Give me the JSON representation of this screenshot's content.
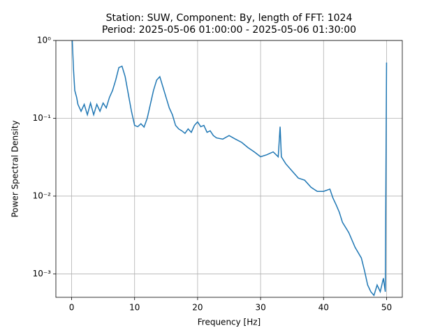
{
  "chart_data": {
    "type": "line",
    "title": "Station: SUW, Component: By, length of FFT: 1024",
    "subtitle": "Period: 2025-05-06 01:00:00 - 2025-05-06 01:30:00",
    "x_label": "Frequency [Hz]",
    "y_label": "Power Spectral Density",
    "x": [
      0.1,
      0.3,
      0.5,
      0.8,
      1.0,
      1.5,
      2.0,
      2.5,
      3.0,
      3.5,
      4.0,
      4.5,
      5.0,
      5.5,
      6.0,
      6.5,
      7.0,
      7.5,
      8.0,
      8.5,
      9.0,
      9.5,
      10.0,
      10.5,
      11.0,
      11.5,
      12.0,
      12.5,
      13.0,
      13.5,
      14.0,
      14.5,
      15.0,
      15.5,
      16.0,
      16.5,
      17.0,
      17.5,
      18.0,
      18.5,
      19.0,
      19.5,
      20.0,
      20.5,
      21.0,
      21.5,
      22.0,
      22.5,
      23.0,
      24.0,
      25.0,
      26.0,
      27.0,
      28.0,
      29.0,
      30.0,
      31.0,
      32.0,
      32.8,
      33.1,
      33.3,
      34.0,
      35.0,
      36.0,
      37.0,
      38.0,
      39.0,
      40.0,
      41.0,
      41.5,
      42.0,
      42.5,
      43.0,
      44.0,
      45.0,
      46.0,
      46.5,
      47.0,
      47.5,
      48.0,
      48.5,
      49.0,
      49.5,
      49.8,
      50.0
    ],
    "series": [
      {
        "name": "By",
        "color": "#1f77b4",
        "values": [
          1.0,
          0.422,
          0.228,
          0.185,
          0.151,
          0.123,
          0.151,
          0.111,
          0.157,
          0.111,
          0.151,
          0.123,
          0.157,
          0.136,
          0.185,
          0.228,
          0.31,
          0.449,
          0.467,
          0.343,
          0.205,
          0.123,
          0.081,
          0.078,
          0.085,
          0.077,
          0.1,
          0.151,
          0.228,
          0.31,
          0.343,
          0.252,
          0.185,
          0.136,
          0.111,
          0.081,
          0.073,
          0.069,
          0.064,
          0.073,
          0.066,
          0.081,
          0.09,
          0.078,
          0.081,
          0.066,
          0.069,
          0.06,
          0.056,
          0.054,
          0.06,
          0.054,
          0.049,
          0.042,
          0.037,
          0.032,
          0.034,
          0.037,
          0.032,
          0.078,
          0.032,
          0.026,
          0.021,
          0.017,
          0.016,
          0.013,
          0.0115,
          0.0115,
          0.0123,
          0.0094,
          0.0077,
          0.0062,
          0.0046,
          0.0034,
          0.0022,
          0.0016,
          0.0011,
          0.00072,
          0.00059,
          0.00053,
          0.00072,
          0.00059,
          0.00088,
          0.00059,
          0.52
        ]
      }
    ],
    "xlim": [
      -2.5,
      52.5
    ],
    "ylim": [
      0.0005,
      1
    ],
    "xticks": [
      0,
      10,
      20,
      30,
      40,
      50
    ],
    "yticks": [
      {
        "value": 0.001,
        "label": "10⁻³"
      },
      {
        "value": 0.01,
        "label": "10⁻²"
      },
      {
        "value": 0.1,
        "label": "10⁻¹"
      },
      {
        "value": 1,
        "label": "10⁰"
      }
    ],
    "log_y": true,
    "grid": true
  }
}
